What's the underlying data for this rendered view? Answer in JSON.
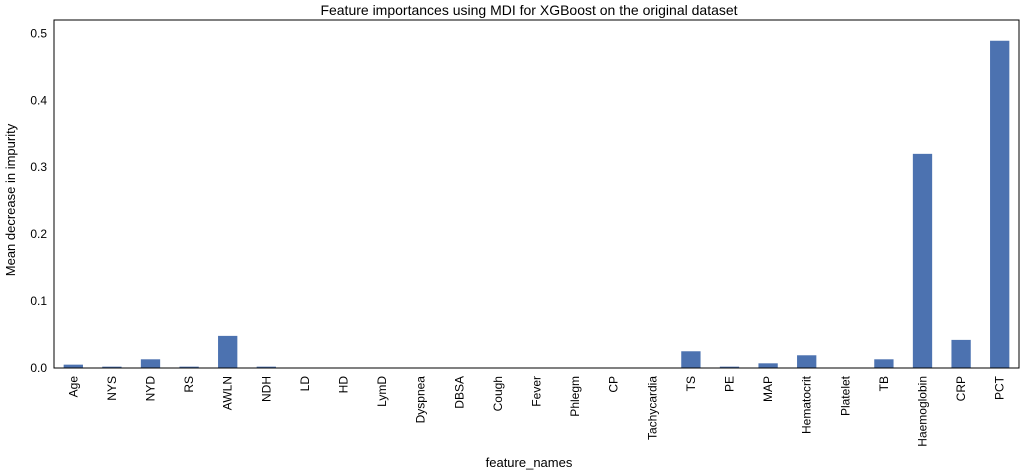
{
  "chart_data": {
    "type": "bar",
    "title": "Feature importances using MDI for XGBoost on the original dataset",
    "xlabel": "feature_names",
    "ylabel": "Mean decrease in impurity",
    "ylim": [
      0,
      0.52
    ],
    "yticks": [
      0.0,
      0.1,
      0.2,
      0.3,
      0.4,
      0.5
    ],
    "ytick_labels": [
      "0.0",
      "0.1",
      "0.2",
      "0.3",
      "0.4",
      "0.5"
    ],
    "grid": false,
    "color": "#4c72b0",
    "categories": [
      "Age",
      "NYS",
      "NYD",
      "RS",
      "AWLN",
      "NDH",
      "LD",
      "HD",
      "LymD",
      "Dyspnea",
      "DBSA",
      "Cough",
      "Fever",
      "Phlegm",
      "CP",
      "Tachycardia",
      "TS",
      "PE",
      "MAP",
      "Hematocrit",
      "Platelet",
      "TB",
      "Haemoglobin",
      "CRP",
      "PCT"
    ],
    "values": [
      0.005,
      0.002,
      0.013,
      0.002,
      0.048,
      0.002,
      0,
      0,
      0,
      0,
      0,
      0,
      0,
      0,
      0,
      0,
      0.025,
      0.002,
      0.007,
      0.019,
      0,
      0.013,
      0.32,
      0.042,
      0.489
    ]
  }
}
